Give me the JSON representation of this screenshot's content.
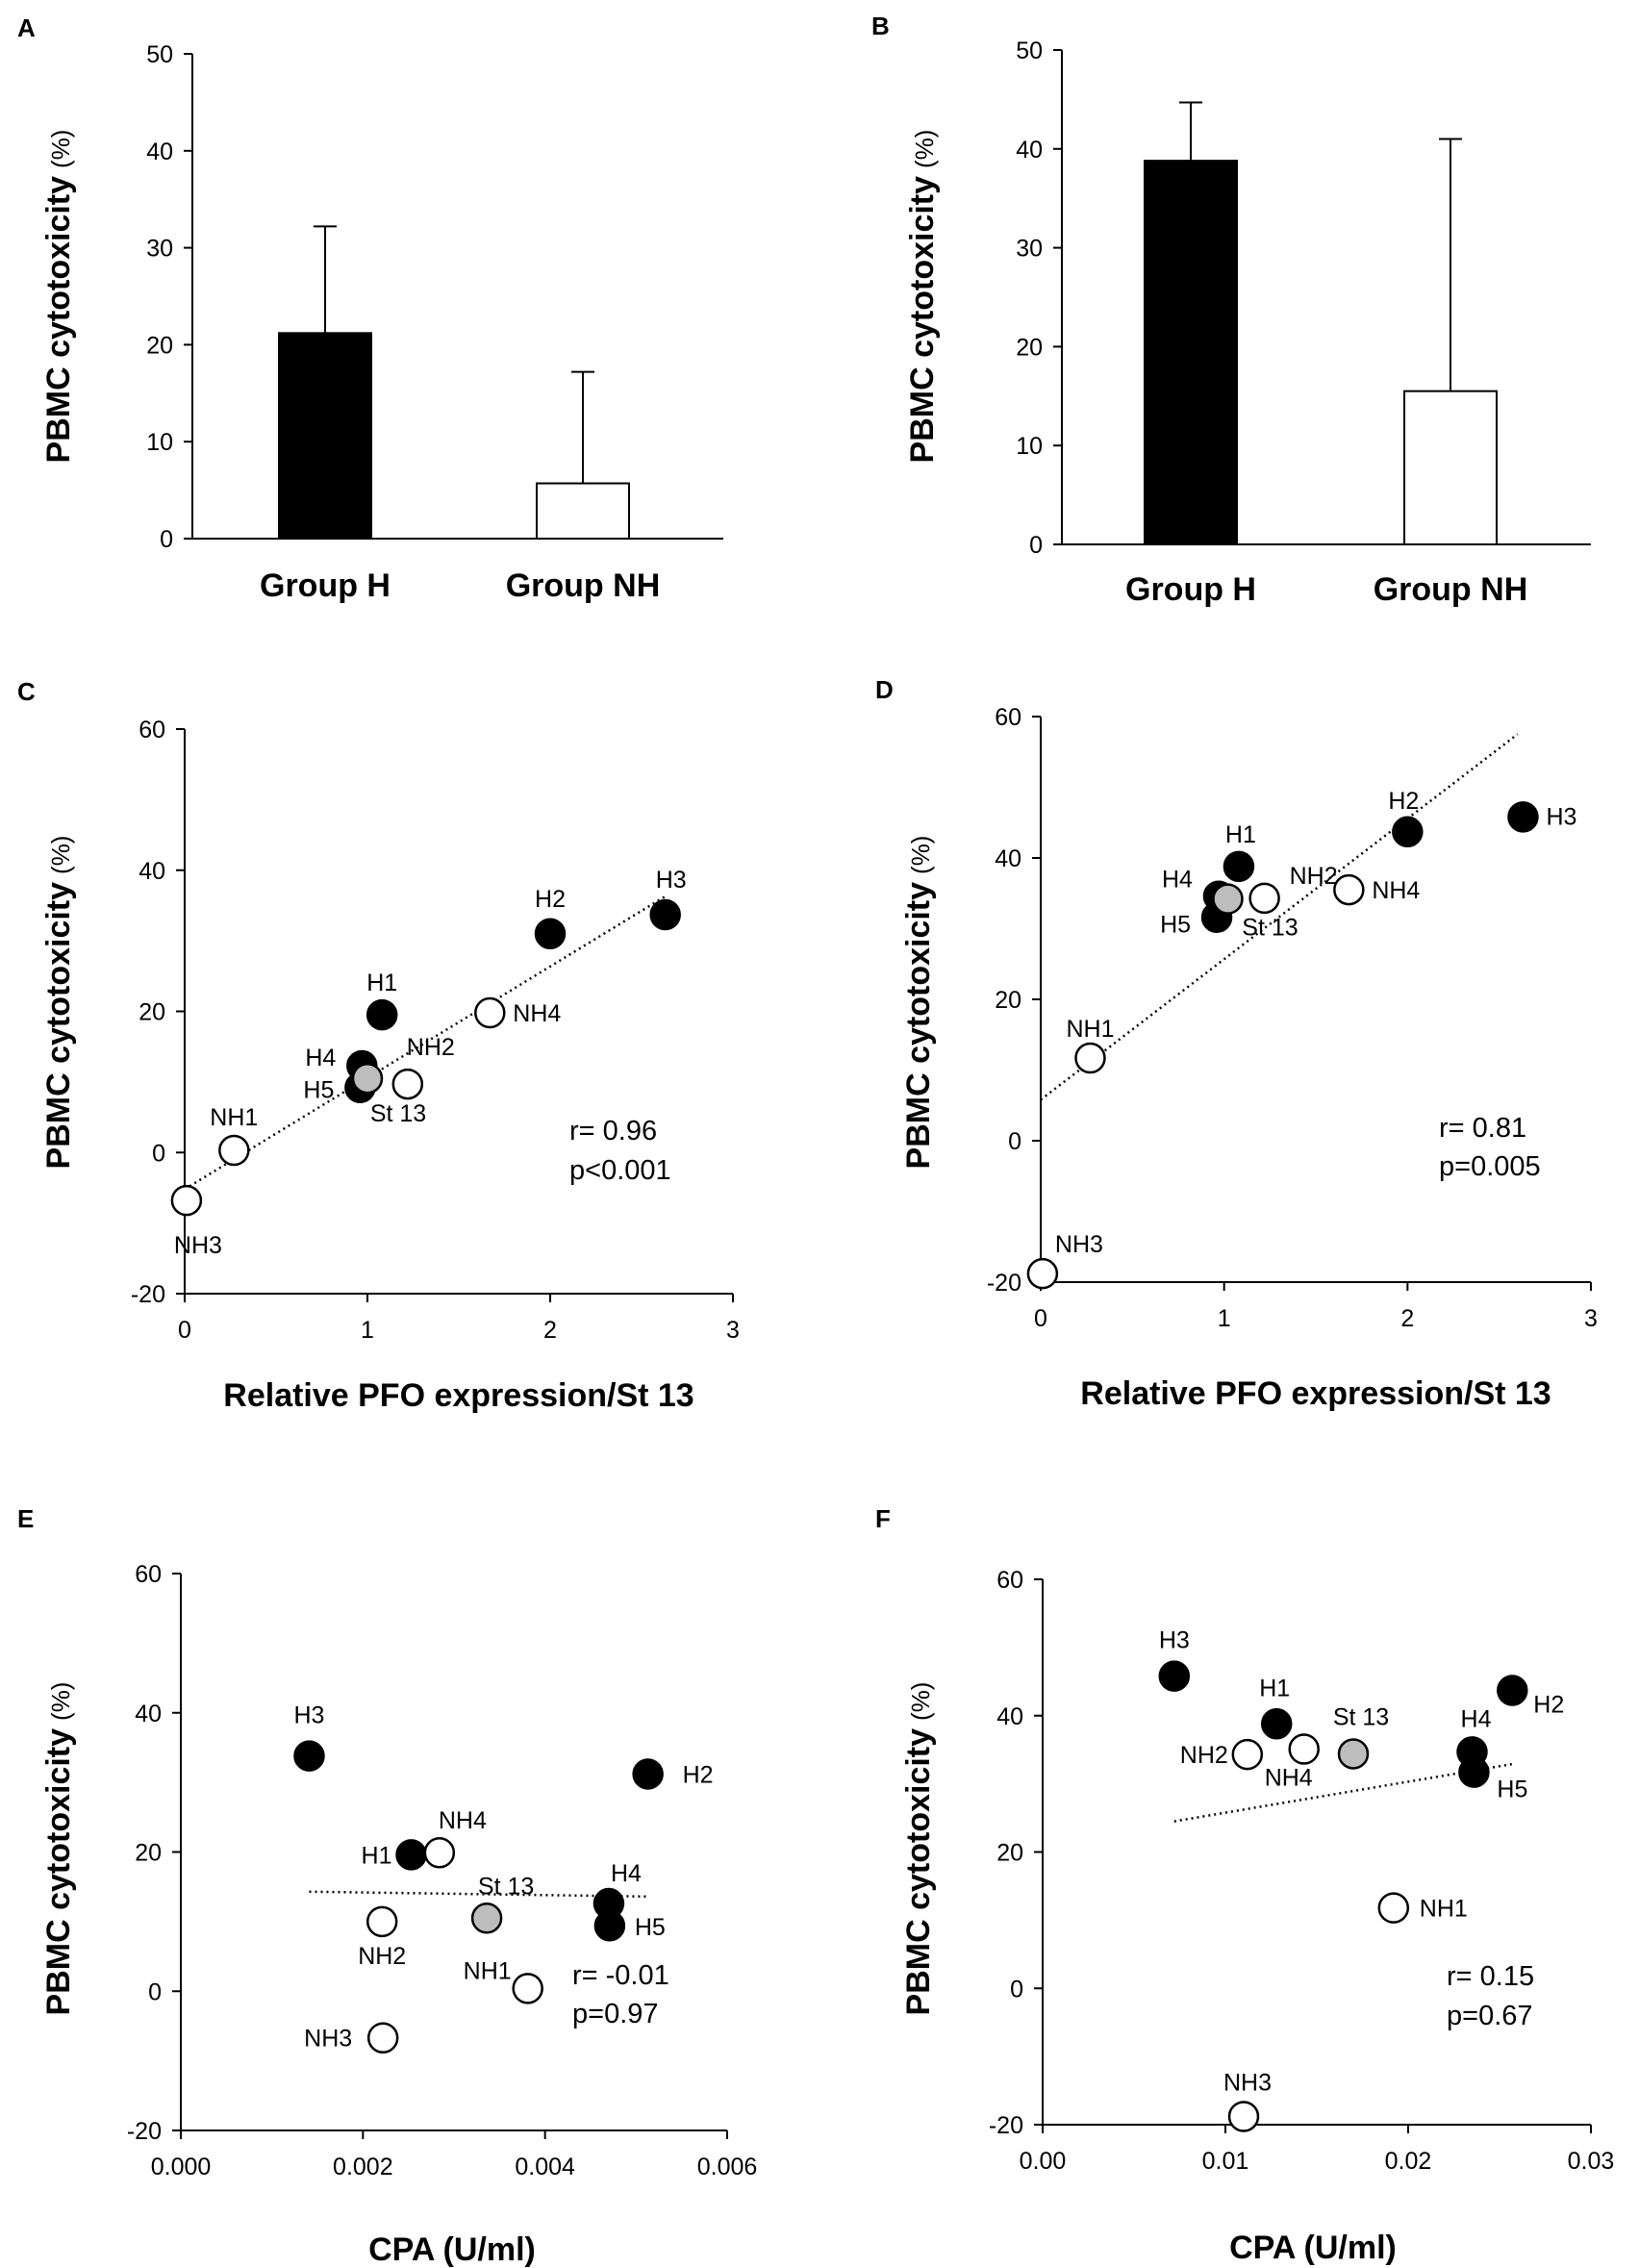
{
  "figure": {
    "background": "#ffffff"
  },
  "chart_data": [
    {
      "id": "A",
      "letter": "A",
      "type": "bar",
      "categories": [
        "Group H",
        "Group NH"
      ],
      "values": [
        21.2,
        5.7
      ],
      "errors": [
        11.0,
        11.5
      ],
      "fills": [
        "#000000",
        "#ffffff"
      ],
      "ylim": [
        0,
        50
      ],
      "yticks": [
        0,
        10,
        20,
        30,
        40,
        50
      ],
      "ylabel": "PBMC cytotoxicity",
      "ylabel_unit": "(%)",
      "xlabel": ""
    },
    {
      "id": "B",
      "letter": "B",
      "type": "bar",
      "categories": [
        "Group H",
        "Group NH"
      ],
      "values": [
        38.8,
        15.5
      ],
      "errors": [
        5.9,
        25.5
      ],
      "fills": [
        "#000000",
        "#ffffff"
      ],
      "ylim": [
        0,
        50
      ],
      "yticks": [
        0,
        10,
        20,
        30,
        40,
        50
      ],
      "ylabel": "PBMC cytotoxicity",
      "ylabel_unit": "(%)",
      "xlabel": ""
    },
    {
      "id": "C",
      "letter": "C",
      "type": "scatter",
      "xlabel": "Relative PFO expression/St 13",
      "ylabel": "PBMC cytotoxicity",
      "ylabel_unit": "(%)",
      "xlim": [
        0,
        3
      ],
      "ylim": [
        -20,
        60
      ],
      "xticks": [
        "0",
        "1",
        "2",
        "3"
      ],
      "yticks": [
        "-20",
        "0",
        "20",
        "40",
        "60"
      ],
      "points": [
        {
          "label": "H1",
          "x": 1.08,
          "y": 19.5,
          "fill": "#000000"
        },
        {
          "label": "H2",
          "x": 2.0,
          "y": 31.0,
          "fill": "#000000"
        },
        {
          "label": "H3",
          "x": 2.63,
          "y": 33.7,
          "fill": "#000000"
        },
        {
          "label": "H4",
          "x": 0.97,
          "y": 12.3,
          "fill": "#000000"
        },
        {
          "label": "H5",
          "x": 0.96,
          "y": 9.2,
          "fill": "#000000"
        },
        {
          "label": "St 13",
          "x": 1.0,
          "y": 10.5,
          "fill": "#bdbdbd"
        },
        {
          "label": "NH1",
          "x": 0.27,
          "y": 0.3,
          "fill": "#ffffff"
        },
        {
          "label": "NH2",
          "x": 1.22,
          "y": 9.7,
          "fill": "#ffffff"
        },
        {
          "label": "NH3",
          "x": 0.01,
          "y": -6.8,
          "fill": "#ffffff"
        },
        {
          "label": "NH4",
          "x": 1.67,
          "y": 19.8,
          "fill": "#ffffff"
        }
      ],
      "trendline": {
        "x": [
          0.0,
          2.63
        ],
        "y": [
          -5.2,
          36.3
        ]
      },
      "stats": [
        "r= 0.96",
        "p<0.001"
      ]
    },
    {
      "id": "D",
      "letter": "D",
      "type": "scatter",
      "xlabel": "Relative PFO expression/St 13",
      "ylabel": "PBMC cytotoxicity",
      "ylabel_unit": "(%)",
      "xlim": [
        0,
        3
      ],
      "ylim": [
        -20,
        60
      ],
      "xticks": [
        "0",
        "1",
        "2",
        "3"
      ],
      "yticks": [
        "-20",
        "0",
        "20",
        "40",
        "60"
      ],
      "points": [
        {
          "label": "H1",
          "x": 1.08,
          "y": 38.8,
          "fill": "#000000"
        },
        {
          "label": "H2",
          "x": 2.0,
          "y": 43.7,
          "fill": "#000000"
        },
        {
          "label": "H3",
          "x": 2.63,
          "y": 45.8,
          "fill": "#000000"
        },
        {
          "label": "H4",
          "x": 0.97,
          "y": 34.6,
          "fill": "#000000"
        },
        {
          "label": "H5",
          "x": 0.96,
          "y": 31.6,
          "fill": "#000000"
        },
        {
          "label": "St 13",
          "x": 1.02,
          "y": 34.2,
          "fill": "#bdbdbd"
        },
        {
          "label": "NH1",
          "x": 0.27,
          "y": 11.7,
          "fill": "#ffffff"
        },
        {
          "label": "NH2",
          "x": 1.22,
          "y": 34.3,
          "fill": "#ffffff"
        },
        {
          "label": "NH3",
          "x": 0.01,
          "y": -18.8,
          "fill": "#ffffff"
        },
        {
          "label": "NH4",
          "x": 1.68,
          "y": 35.5,
          "fill": "#ffffff"
        }
      ],
      "trendline": {
        "x": [
          0.0,
          2.6
        ],
        "y": [
          5.8,
          57.5
        ]
      },
      "stats": [
        "r= 0.81",
        "p=0.005"
      ]
    },
    {
      "id": "E",
      "letter": "E",
      "type": "scatter",
      "xlabel": "CPA (U/ml)",
      "ylabel": "PBMC cytotoxicity",
      "ylabel_unit": "(%)",
      "xlim": [
        0,
        0.006
      ],
      "ylim": [
        -20,
        60
      ],
      "xticks": [
        "0.000",
        "0.002",
        "0.004",
        "0.006"
      ],
      "yticks": [
        "-20",
        "0",
        "20",
        "40",
        "60"
      ],
      "points": [
        {
          "label": "H1",
          "x": 0.00253,
          "y": 19.6,
          "fill": "#000000"
        },
        {
          "label": "H2",
          "x": 0.00513,
          "y": 31.2,
          "fill": "#000000"
        },
        {
          "label": "H3",
          "x": 0.00141,
          "y": 33.8,
          "fill": "#000000"
        },
        {
          "label": "H4",
          "x": 0.0047,
          "y": 12.6,
          "fill": "#000000"
        },
        {
          "label": "H5",
          "x": 0.00471,
          "y": 9.4,
          "fill": "#000000"
        },
        {
          "label": "St 13",
          "x": 0.00336,
          "y": 10.5,
          "fill": "#bdbdbd"
        },
        {
          "label": "NH1",
          "x": 0.00381,
          "y": 0.4,
          "fill": "#ffffff"
        },
        {
          "label": "NH2",
          "x": 0.00221,
          "y": 10.0,
          "fill": "#ffffff"
        },
        {
          "label": "NH3",
          "x": 0.00222,
          "y": -6.7,
          "fill": "#ffffff"
        },
        {
          "label": "NH4",
          "x": 0.00284,
          "y": 19.9,
          "fill": "#ffffff"
        }
      ],
      "trendline": {
        "x": [
          0.00141,
          0.00513
        ],
        "y": [
          14.3,
          13.6
        ]
      },
      "stats": [
        "r= -0.01",
        "p=0.97"
      ]
    },
    {
      "id": "F",
      "letter": "F",
      "type": "scatter",
      "xlabel": "CPA (U/ml)",
      "ylabel": "PBMC cytotoxicity",
      "ylabel_unit": "(%)",
      "xlim": [
        0,
        0.03
      ],
      "ylim": [
        -20,
        60
      ],
      "xticks": [
        "0.00",
        "0.01",
        "0.02",
        "0.03"
      ],
      "yticks": [
        "-20",
        "0",
        "20",
        "40",
        "60"
      ],
      "points": [
        {
          "label": "H1",
          "x": 0.0128,
          "y": 38.8,
          "fill": "#000000"
        },
        {
          "label": "H2",
          "x": 0.0257,
          "y": 43.7,
          "fill": "#000000"
        },
        {
          "label": "H3",
          "x": 0.0072,
          "y": 45.8,
          "fill": "#000000"
        },
        {
          "label": "H4",
          "x": 0.0235,
          "y": 34.7,
          "fill": "#000000"
        },
        {
          "label": "H5",
          "x": 0.0236,
          "y": 31.7,
          "fill": "#000000"
        },
        {
          "label": "St 13",
          "x": 0.017,
          "y": 34.4,
          "fill": "#bdbdbd"
        },
        {
          "label": "NH1",
          "x": 0.0192,
          "y": 11.8,
          "fill": "#ffffff"
        },
        {
          "label": "NH2",
          "x": 0.0112,
          "y": 34.3,
          "fill": "#ffffff"
        },
        {
          "label": "NH3",
          "x": 0.011,
          "y": -18.8,
          "fill": "#ffffff"
        },
        {
          "label": "NH4",
          "x": 0.0143,
          "y": 35.1,
          "fill": "#ffffff"
        }
      ],
      "trendline": {
        "x": [
          0.0072,
          0.0257
        ],
        "y": [
          24.5,
          32.9
        ]
      },
      "stats": [
        "r= 0.15",
        "p=0.67"
      ]
    }
  ]
}
